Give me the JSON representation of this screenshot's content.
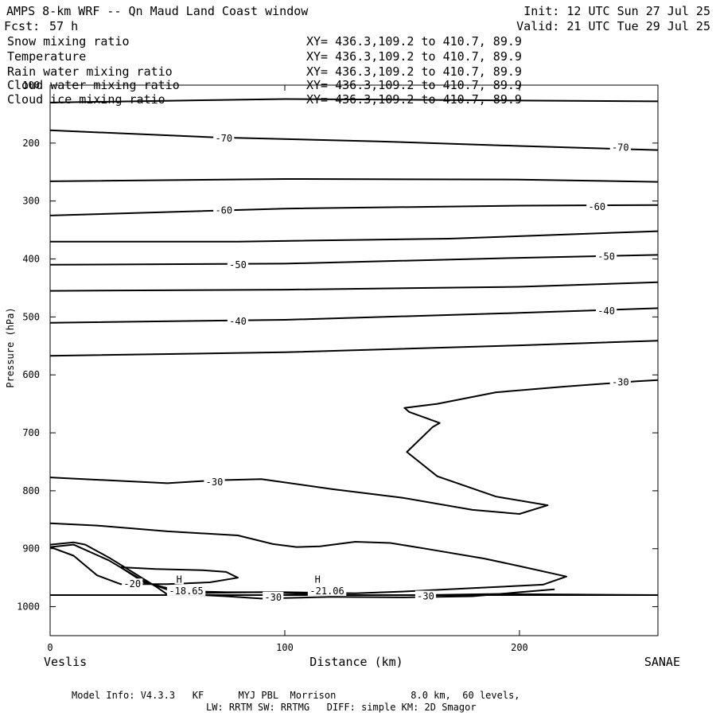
{
  "header": {
    "title": "AMPS 8-km WRF -- Qn Maud Land Coast window",
    "forecast_label": "Fcst:",
    "forecast_value": "57 h",
    "init": "Init: 12 UTC Sun 27 Jul 25",
    "valid": "Valid: 21 UTC Tue 29 Jul 25"
  },
  "fields": [
    {
      "name": "Snow mixing ratio",
      "xy": "XY= 436.3,109.2 to 410.7, 89.9",
      "color": "#000000"
    },
    {
      "name": "Temperature",
      "xy": "XY= 436.3,109.2 to 410.7, 89.9",
      "color": "#000000"
    },
    {
      "name": "Rain water mixing ratio",
      "xy": "XY= 436.3,109.2 to 410.7, 89.9",
      "color": "#ff0000"
    },
    {
      "name": "Cloud water mixing ratio",
      "xy": "XY= 436.3,109.2 to 410.7, 89.9",
      "color": "#0000ff"
    },
    {
      "name": "Cloud ice mixing ratio",
      "xy": "XY= 436.3,109.2 to 410.7, 89.9",
      "color": "#000000"
    }
  ],
  "chart_data": {
    "type": "line",
    "xlabel": "Distance (km)",
    "ylabel": "Pressure (hPa)",
    "xlim": [
      0,
      259
    ],
    "ylim": [
      1050,
      100
    ],
    "yscale": "linear-inverted",
    "x_ticks": [
      0,
      100,
      200
    ],
    "y_ticks": [
      100,
      200,
      300,
      400,
      500,
      600,
      700,
      800,
      900,
      1000
    ],
    "x_endpoint_labels": {
      "left": "Veslis",
      "right": "SANAE"
    },
    "series": [
      {
        "points": [
          [
            0,
            130
          ],
          [
            100,
            124
          ],
          [
            259,
            128
          ]
        ]
      },
      {
        "points": [
          [
            0,
            178
          ],
          [
            70,
            190
          ],
          [
            140,
            197
          ],
          [
            200,
            205
          ],
          [
            259,
            212
          ]
        ]
      },
      {
        "points": [
          [
            0,
            266
          ],
          [
            100,
            262
          ],
          [
            200,
            263
          ],
          [
            259,
            267
          ]
        ]
      },
      {
        "points": [
          [
            0,
            325
          ],
          [
            100,
            313
          ],
          [
            200,
            308
          ],
          [
            259,
            307
          ]
        ]
      },
      {
        "points": [
          [
            0,
            370
          ],
          [
            80,
            370
          ],
          [
            170,
            365
          ],
          [
            259,
            352
          ]
        ]
      },
      {
        "points": [
          [
            0,
            410
          ],
          [
            100,
            408
          ],
          [
            200,
            398
          ],
          [
            259,
            393
          ]
        ]
      },
      {
        "points": [
          [
            0,
            455
          ],
          [
            100,
            453
          ],
          [
            200,
            448
          ],
          [
            259,
            440
          ]
        ]
      },
      {
        "points": [
          [
            0,
            510
          ],
          [
            100,
            505
          ],
          [
            200,
            493
          ],
          [
            259,
            485
          ]
        ]
      },
      {
        "points": [
          [
            0,
            567
          ],
          [
            100,
            561
          ],
          [
            200,
            549
          ],
          [
            259,
            541
          ]
        ]
      },
      {
        "points": [
          [
            0,
            777
          ],
          [
            50,
            787
          ],
          [
            70,
            782
          ],
          [
            90,
            780
          ],
          [
            120,
            797
          ],
          [
            150,
            812
          ],
          [
            180,
            833
          ],
          [
            200,
            840
          ],
          [
            212,
            825
          ],
          [
            190,
            810
          ],
          [
            165,
            775
          ],
          [
            152,
            733
          ],
          [
            163,
            690
          ],
          [
            166,
            683
          ],
          [
            153,
            664
          ],
          [
            151,
            657
          ],
          [
            165,
            650
          ],
          [
            190,
            630
          ],
          [
            220,
            620
          ],
          [
            250,
            611
          ],
          [
            259,
            609
          ]
        ]
      },
      {
        "points": [
          [
            0,
            856
          ],
          [
            20,
            860
          ],
          [
            50,
            870
          ],
          [
            80,
            877
          ],
          [
            95,
            892
          ],
          [
            105,
            897
          ],
          [
            115,
            896
          ],
          [
            130,
            888
          ],
          [
            145,
            890
          ],
          [
            160,
            900
          ],
          [
            185,
            917
          ],
          [
            200,
            930
          ],
          [
            220,
            948
          ],
          [
            210,
            962
          ],
          [
            180,
            968
          ],
          [
            150,
            974
          ],
          [
            130,
            977
          ],
          [
            100,
            975
          ],
          [
            75,
            975
          ],
          [
            55,
            973
          ],
          [
            40,
            958
          ],
          [
            30,
            932
          ],
          [
            45,
            935
          ],
          [
            65,
            937
          ],
          [
            75,
            940
          ],
          [
            80,
            950
          ],
          [
            68,
            958
          ],
          [
            50,
            961
          ],
          [
            30,
            961
          ],
          [
            20,
            946
          ],
          [
            10,
            912
          ],
          [
            0,
            897
          ]
        ]
      },
      {
        "points": [
          [
            0,
            893
          ],
          [
            10,
            889
          ],
          [
            15,
            893
          ],
          [
            25,
            915
          ],
          [
            35,
            940
          ],
          [
            45,
            965
          ],
          [
            50,
            979
          ],
          [
            70,
            976
          ],
          [
            90,
            975
          ],
          [
            110,
            978
          ],
          [
            130,
            980
          ],
          [
            160,
            980
          ],
          [
            190,
            978
          ],
          [
            220,
            979
          ],
          [
            259,
            980
          ]
        ]
      },
      {
        "points": [
          [
            0,
            897
          ],
          [
            10,
            893
          ],
          [
            25,
            920
          ],
          [
            40,
            956
          ],
          [
            55,
            978
          ],
          [
            75,
            982
          ],
          [
            90,
            986
          ],
          [
            120,
            983
          ],
          [
            150,
            984
          ],
          [
            180,
            982
          ],
          [
            200,
            975
          ],
          [
            215,
            970
          ]
        ]
      },
      {
        "points": [
          [
            0,
            980
          ],
          [
            259,
            980
          ]
        ]
      }
    ],
    "annotations": [
      {
        "text": "-70",
        "x": 74,
        "y": 192
      },
      {
        "text": "-70",
        "x": 243,
        "y": 208
      },
      {
        "text": "-60",
        "x": 74,
        "y": 316
      },
      {
        "text": "-60",
        "x": 233,
        "y": 310
      },
      {
        "text": "-50",
        "x": 80,
        "y": 410
      },
      {
        "text": "-50",
        "x": 237,
        "y": 396
      },
      {
        "text": "-40",
        "x": 80,
        "y": 508
      },
      {
        "text": "-40",
        "x": 237,
        "y": 490
      },
      {
        "text": "-30",
        "x": 243,
        "y": 613
      },
      {
        "text": "-30",
        "x": 70,
        "y": 785
      },
      {
        "text": "-20",
        "x": 35,
        "y": 961
      },
      {
        "text": "-30",
        "x": 95,
        "y": 984
      },
      {
        "text": "-30",
        "x": 160,
        "y": 982
      },
      {
        "text": "H",
        "x": 55,
        "y": 953
      },
      {
        "text": "-18.65",
        "x": 58,
        "y": 973
      },
      {
        "text": "H",
        "x": 114,
        "y": 953
      },
      {
        "text": "-21.06",
        "x": 118,
        "y": 973
      }
    ]
  },
  "footer": {
    "line1": "Model Info: V4.3.3   KF      MYJ PBL  Morrison             8.0 km,  60 levels,",
    "line2": "LW: RRTM SW: RRTMG   DIFF: simple KM: 2D Smagor"
  }
}
